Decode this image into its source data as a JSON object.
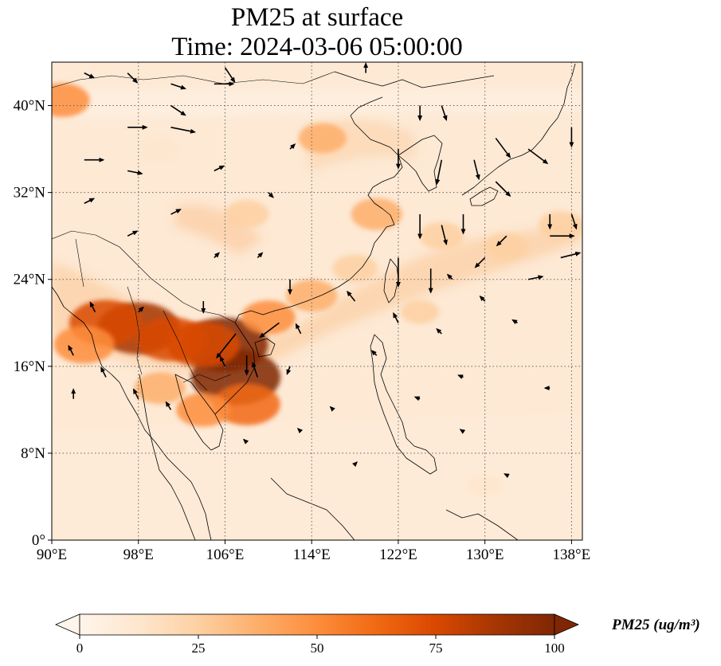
{
  "title": {
    "line1": "PM25 at surface",
    "line2": "Time: 2024-03-06 05:00:00"
  },
  "map": {
    "extent": {
      "lon": [
        90,
        139
      ],
      "lat": [
        0,
        44
      ]
    },
    "lon_ticks": [
      {
        "value": 90,
        "label": "90°E"
      },
      {
        "value": 98,
        "label": "98°E"
      },
      {
        "value": 106,
        "label": "106°E"
      },
      {
        "value": 114,
        "label": "114°E"
      },
      {
        "value": 122,
        "label": "122°E"
      },
      {
        "value": 130,
        "label": "130°E"
      },
      {
        "value": 138,
        "label": "138°E"
      }
    ],
    "lat_ticks": [
      {
        "value": 0,
        "label": "0°"
      },
      {
        "value": 8,
        "label": "8°N"
      },
      {
        "value": 16,
        "label": "16°N"
      },
      {
        "value": 24,
        "label": "24°N"
      },
      {
        "value": 32,
        "label": "32°N"
      },
      {
        "value": 40,
        "label": "40°N"
      }
    ],
    "gridlines": true,
    "colormap": [
      "#fff5eb",
      "#fee6ce",
      "#fdd0a2",
      "#fdae6b",
      "#fd8d3c",
      "#f16913",
      "#d94801",
      "#a63603",
      "#7f2704"
    ],
    "hotspots": [
      {
        "lon": 106,
        "lat": 18,
        "value": 95
      },
      {
        "lon": 107,
        "lat": 15,
        "value": 100
      },
      {
        "lon": 98,
        "lat": 19.5,
        "value": 90
      },
      {
        "lon": 101,
        "lat": 18.5,
        "value": 70
      },
      {
        "lon": 104,
        "lat": 18,
        "value": 75
      },
      {
        "lon": 95,
        "lat": 20,
        "value": 75
      },
      {
        "lon": 93,
        "lat": 18,
        "value": 55
      },
      {
        "lon": 108,
        "lat": 12.5,
        "value": 65
      },
      {
        "lon": 100,
        "lat": 14,
        "value": 40
      },
      {
        "lon": 104,
        "lat": 12,
        "value": 45
      },
      {
        "lon": 110,
        "lat": 20.5,
        "value": 45
      },
      {
        "lon": 114,
        "lat": 22.5,
        "value": 40
      },
      {
        "lon": 118,
        "lat": 25,
        "value": 30
      },
      {
        "lon": 120,
        "lat": 30,
        "value": 40
      },
      {
        "lon": 115,
        "lat": 37,
        "value": 35
      },
      {
        "lon": 108,
        "lat": 30,
        "value": 30
      },
      {
        "lon": 126,
        "lat": 28,
        "value": 30
      },
      {
        "lon": 132,
        "lat": 27,
        "value": 28
      },
      {
        "lon": 137,
        "lat": 29,
        "value": 30
      },
      {
        "lon": 91,
        "lat": 40.5,
        "value": 45
      },
      {
        "lon": 124,
        "lat": 21,
        "value": 20
      },
      {
        "lon": 100,
        "lat": 36,
        "value": 15
      },
      {
        "lon": 130,
        "lat": 5,
        "value": 15
      }
    ],
    "wind_vectors": [
      {
        "lon": 93,
        "lat": 43,
        "u": 1,
        "v": -0.5
      },
      {
        "lon": 97,
        "lat": 43,
        "u": 1,
        "v": -1
      },
      {
        "lon": 101,
        "lat": 42,
        "u": 1.5,
        "v": -0.5
      },
      {
        "lon": 105,
        "lat": 42,
        "u": 2,
        "v": 0
      },
      {
        "lon": 106,
        "lat": 43.5,
        "u": 1,
        "v": -1.5
      },
      {
        "lon": 93,
        "lat": 35,
        "u": 2,
        "v": 0
      },
      {
        "lon": 97,
        "lat": 38,
        "u": 2,
        "v": 0
      },
      {
        "lon": 101,
        "lat": 38,
        "u": 2.5,
        "v": -0.5
      },
      {
        "lon": 101,
        "lat": 40,
        "u": 1.5,
        "v": -1
      },
      {
        "lon": 97,
        "lat": 34,
        "u": 1.5,
        "v": -0.3
      },
      {
        "lon": 93,
        "lat": 31,
        "u": 1,
        "v": 0.5
      },
      {
        "lon": 101,
        "lat": 30,
        "u": 1,
        "v": 0.5
      },
      {
        "lon": 97,
        "lat": 28,
        "u": 1,
        "v": 0.5
      },
      {
        "lon": 105,
        "lat": 34,
        "u": 1,
        "v": 0.5
      },
      {
        "lon": 105,
        "lat": 26,
        "u": 0.5,
        "v": 0.5
      },
      {
        "lon": 109,
        "lat": 26,
        "u": 0.5,
        "v": 0.5
      },
      {
        "lon": 110,
        "lat": 32,
        "u": 0.5,
        "v": -0.5
      },
      {
        "lon": 112,
        "lat": 36,
        "u": 0.5,
        "v": 0.5
      },
      {
        "lon": 112,
        "lat": 24,
        "u": 0,
        "v": -1.5
      },
      {
        "lon": 104,
        "lat": 22,
        "u": 0,
        "v": -1.2
      },
      {
        "lon": 107,
        "lat": 19,
        "u": -2,
        "v": -2.5
      },
      {
        "lon": 108,
        "lat": 17,
        "u": 0,
        "v": -2
      },
      {
        "lon": 111,
        "lat": 20,
        "u": -2,
        "v": -1.5
      },
      {
        "lon": 109,
        "lat": 15,
        "u": -0.5,
        "v": 1.5
      },
      {
        "lon": 106,
        "lat": 16,
        "u": -0.5,
        "v": 1
      },
      {
        "lon": 113,
        "lat": 19,
        "u": -0.5,
        "v": 1
      },
      {
        "lon": 112,
        "lat": 16,
        "u": -0.3,
        "v": -0.8
      },
      {
        "lon": 92,
        "lat": 17,
        "u": -0.5,
        "v": 1
      },
      {
        "lon": 92,
        "lat": 13,
        "u": 0,
        "v": 1
      },
      {
        "lon": 95,
        "lat": 15,
        "u": -0.5,
        "v": 1
      },
      {
        "lon": 94,
        "lat": 21,
        "u": -0.5,
        "v": 1
      },
      {
        "lon": 98,
        "lat": 13,
        "u": -0.5,
        "v": 1
      },
      {
        "lon": 101,
        "lat": 12,
        "u": -0.5,
        "v": 0.8
      },
      {
        "lon": 98,
        "lat": 21,
        "u": 0.5,
        "v": 0.5
      },
      {
        "lon": 119,
        "lat": 43,
        "u": 0,
        "v": 1
      },
      {
        "lon": 124,
        "lat": 40,
        "u": 0,
        "v": -1.5
      },
      {
        "lon": 126,
        "lat": 40,
        "u": 0.5,
        "v": -1.5
      },
      {
        "lon": 122,
        "lat": 36,
        "u": 0,
        "v": -2
      },
      {
        "lon": 126,
        "lat": 35,
        "u": -0.5,
        "v": -2.5
      },
      {
        "lon": 124,
        "lat": 30,
        "u": 0,
        "v": -2.5
      },
      {
        "lon": 126,
        "lat": 29,
        "u": 0.5,
        "v": -2
      },
      {
        "lon": 122,
        "lat": 26,
        "u": 0,
        "v": -3
      },
      {
        "lon": 125,
        "lat": 25,
        "u": 0,
        "v": -2.5
      },
      {
        "lon": 128,
        "lat": 30,
        "u": 0,
        "v": -2
      },
      {
        "lon": 129,
        "lat": 35,
        "u": 0.5,
        "v": -2
      },
      {
        "lon": 131,
        "lat": 37,
        "u": 1.5,
        "v": -2
      },
      {
        "lon": 131,
        "lat": 33,
        "u": 1.5,
        "v": -1.5
      },
      {
        "lon": 134,
        "lat": 36,
        "u": 2,
        "v": -1.5
      },
      {
        "lon": 136,
        "lat": 30,
        "u": 0,
        "v": -1.5
      },
      {
        "lon": 138,
        "lat": 30,
        "u": 0.5,
        "v": -1.5
      },
      {
        "lon": 138,
        "lat": 38,
        "u": 0,
        "v": -2
      },
      {
        "lon": 132,
        "lat": 28,
        "u": -1,
        "v": -1
      },
      {
        "lon": 134,
        "lat": 24,
        "u": 1.5,
        "v": 0.3
      },
      {
        "lon": 136,
        "lat": 28,
        "u": 2.5,
        "v": 0
      },
      {
        "lon": 137,
        "lat": 26,
        "u": 2,
        "v": 0.5
      },
      {
        "lon": 139,
        "lat": 28,
        "u": 1.5,
        "v": 1
      },
      {
        "lon": 130,
        "lat": 26,
        "u": -1,
        "v": -1
      },
      {
        "lon": 127,
        "lat": 24,
        "u": -0.5,
        "v": 0.5
      },
      {
        "lon": 130,
        "lat": 22,
        "u": -0.5,
        "v": 0.5
      },
      {
        "lon": 126,
        "lat": 19,
        "u": -0.5,
        "v": 0.5
      },
      {
        "lon": 122,
        "lat": 20,
        "u": -0.5,
        "v": 1
      },
      {
        "lon": 118,
        "lat": 22,
        "u": -0.8,
        "v": 1
      },
      {
        "lon": 120,
        "lat": 17,
        "u": -0.5,
        "v": 0.5
      },
      {
        "lon": 124,
        "lat": 13,
        "u": -0.5,
        "v": 0.2
      },
      {
        "lon": 128,
        "lat": 15,
        "u": -0.5,
        "v": 0.2
      },
      {
        "lon": 133,
        "lat": 20,
        "u": -0.5,
        "v": 0.3
      },
      {
        "lon": 136,
        "lat": 14,
        "u": -0.5,
        "v": 0
      },
      {
        "lon": 116,
        "lat": 12,
        "u": -0.3,
        "v": 0.3
      },
      {
        "lon": 113,
        "lat": 10,
        "u": -0.3,
        "v": 0.3
      },
      {
        "lon": 108,
        "lat": 9,
        "u": -0.3,
        "v": 0.3
      },
      {
        "lon": 118,
        "lat": 7,
        "u": 0.2,
        "v": 0.2
      },
      {
        "lon": 128,
        "lat": 10,
        "u": -0.3,
        "v": 0.2
      },
      {
        "lon": 132,
        "lat": 6,
        "u": -0.2,
        "v": 0.1
      }
    ]
  },
  "colorbar": {
    "title": "PM25 (ug/m³)",
    "min": 0,
    "max": 100,
    "extend": "both",
    "ticks": [
      {
        "value": 0,
        "label": "0"
      },
      {
        "value": 25,
        "label": "25"
      },
      {
        "value": 50,
        "label": "50"
      },
      {
        "value": 75,
        "label": "75"
      },
      {
        "value": 100,
        "label": "100"
      }
    ],
    "colors": [
      "#fff5eb",
      "#fee6ce",
      "#fdd0a2",
      "#fdae6b",
      "#fd8d3c",
      "#f16913",
      "#d94801",
      "#a63603",
      "#7f2704"
    ]
  }
}
